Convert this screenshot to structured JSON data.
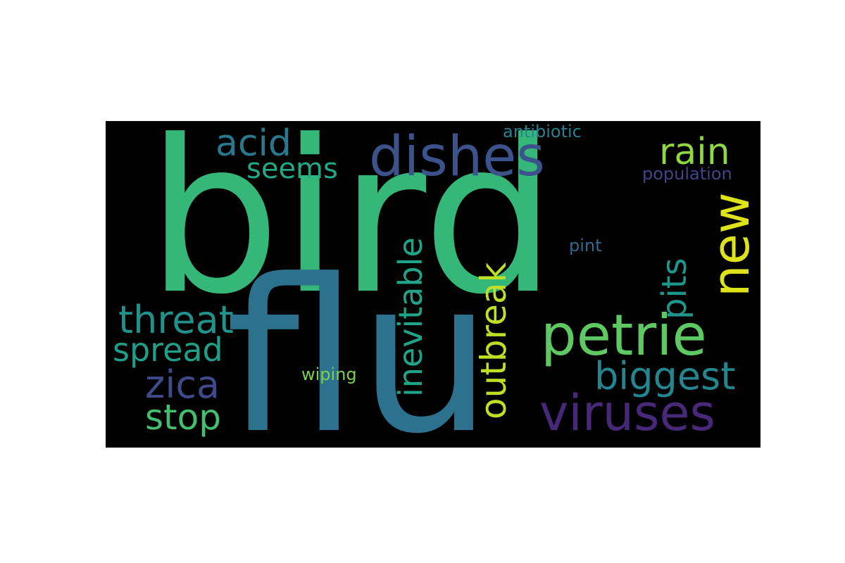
{
  "word_cloud": {
    "background": "#000000",
    "words": [
      {
        "text": "bird",
        "color": "#35b779"
      },
      {
        "text": "flu",
        "color": "#2c728e"
      },
      {
        "text": "dishes",
        "color": "#3b528b"
      },
      {
        "text": "petrie",
        "color": "#5ec962"
      },
      {
        "text": "viruses",
        "color": "#482878"
      },
      {
        "text": "new",
        "color": "#dde318"
      },
      {
        "text": "acid",
        "color": "#2a788e"
      },
      {
        "text": "rain",
        "color": "#8fd744"
      },
      {
        "text": "seems",
        "color": "#22a884"
      },
      {
        "text": "threat",
        "color": "#21918c"
      },
      {
        "text": "spread",
        "color": "#1f9e89"
      },
      {
        "text": "zica",
        "color": "#3e4a89"
      },
      {
        "text": "stop",
        "color": "#44bf70"
      },
      {
        "text": "biggest",
        "color": "#25858e"
      },
      {
        "text": "outbreak",
        "color": "#bddf26"
      },
      {
        "text": "inevitable",
        "color": "#20a386"
      },
      {
        "text": "pits",
        "color": "#1f968b"
      },
      {
        "text": "antibiotic",
        "color": "#26828e"
      },
      {
        "text": "population",
        "color": "#414487"
      },
      {
        "text": "pint",
        "color": "#31688e"
      },
      {
        "text": "wiping",
        "color": "#7ad151"
      }
    ]
  }
}
